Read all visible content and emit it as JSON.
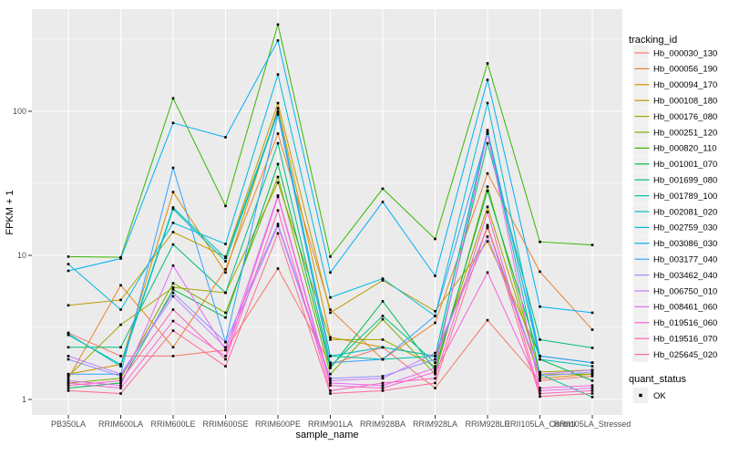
{
  "figure": {
    "xlabel": "sample_name",
    "ylabel": "FPKM + 1"
  },
  "legend": {
    "tracking_title": "tracking_id",
    "quant_title": "quant_status",
    "quant_ok_label": "OK",
    "quant_ok_color": "#000000"
  },
  "style": {
    "panel_bg": "#ebebeb",
    "grid_color": "#ffffff",
    "tick_color": "#333333",
    "key_bg": "#f0f0f0",
    "marker_color": "#000000"
  },
  "chart_data": {
    "type": "line",
    "title": "",
    "xlabel": "sample_name",
    "ylabel": "FPKM + 1",
    "y_scale": "log10",
    "grid": true,
    "legend_position": "right",
    "marker": "square",
    "ylim": [
      0.8,
      520
    ],
    "y_ticks": [
      1,
      10,
      100
    ],
    "y_minor": [
      3.162,
      31.62,
      316.2
    ],
    "categories": [
      "PB350LA",
      "RRIM600LA",
      "RRIM600LE",
      "RRIM600SE",
      "RRIM600PE",
      "RRIM901LA",
      "RRIM928BA",
      "RRIM928LA",
      "RRIM928LE",
      "RRII105LA_Control",
      "RRII105LA_Stressed"
    ],
    "series": [
      {
        "name": "Hb_000030_130",
        "color": "#F8766D",
        "values": [
          2.9,
          2.0,
          2.0,
          2.2,
          8.1,
          1.75,
          2.3,
          1.2,
          3.55,
          1.35,
          1.45
        ]
      },
      {
        "name": "Hb_000056_190",
        "color": "#EA8331",
        "values": [
          1.4,
          6.2,
          2.3,
          8.0,
          70,
          4.2,
          1.9,
          3.4,
          37,
          7.7,
          3.05
        ]
      },
      {
        "name": "Hb_000094_170",
        "color": "#D89000",
        "values": [
          1.5,
          1.75,
          27.5,
          7.6,
          105,
          2.7,
          2.3,
          2.0,
          15.5,
          1.4,
          1.5
        ]
      },
      {
        "name": "Hb_000108_180",
        "color": "#C09B00",
        "values": [
          4.5,
          4.9,
          14.5,
          9.8,
          114,
          4.0,
          6.7,
          4.1,
          12.5,
          2.0,
          1.8
        ]
      },
      {
        "name": "Hb_000176_080",
        "color": "#A3A500",
        "values": [
          1.45,
          3.3,
          6.0,
          5.5,
          32,
          2.6,
          2.6,
          1.7,
          21.7,
          1.55,
          1.6
        ]
      },
      {
        "name": "Hb_000251_120",
        "color": "#7CAE00",
        "values": [
          1.3,
          1.4,
          6.4,
          4.0,
          35,
          1.5,
          3.6,
          1.5,
          30,
          1.5,
          1.5
        ]
      },
      {
        "name": "Hb_000820_110",
        "color": "#39B600",
        "values": [
          9.8,
          9.7,
          123,
          22,
          400,
          9.8,
          29,
          13,
          215,
          12.4,
          11.8
        ]
      },
      {
        "name": "Hb_001001_070",
        "color": "#00BB4E",
        "values": [
          1.2,
          1.3,
          5.8,
          3.7,
          43,
          1.65,
          4.8,
          1.6,
          28,
          1.9,
          1.35
        ]
      },
      {
        "name": "Hb_001699_080",
        "color": "#00BF7D",
        "values": [
          2.3,
          2.3,
          11.9,
          5.5,
          60,
          1.7,
          3.8,
          1.8,
          60,
          2.6,
          2.28
        ]
      },
      {
        "name": "Hb_001789_100",
        "color": "#00C1A3",
        "values": [
          2.85,
          1.7,
          21.0,
          9.1,
          98,
          2.0,
          1.9,
          2.0,
          72,
          1.5,
          1.04
        ]
      },
      {
        "name": "Hb_002081_020",
        "color": "#00BFC4",
        "values": [
          2.8,
          1.75,
          21.5,
          9.6,
          100,
          2.0,
          2.3,
          2.0,
          74,
          1.9,
          1.7
        ]
      },
      {
        "name": "Hb_002759_030",
        "color": "#00BAE0",
        "values": [
          8.7,
          4.2,
          16.8,
          12,
          180,
          5.1,
          6.9,
          3.8,
          114,
          2.0,
          1.8
        ]
      },
      {
        "name": "Hb_003086_030",
        "color": "#00B0F6",
        "values": [
          7.8,
          9.5,
          83,
          66,
          310,
          7.6,
          23.5,
          7.2,
          165,
          4.4,
          4.0
        ]
      },
      {
        "name": "Hb_003177_040",
        "color": "#35A2FF",
        "values": [
          1.5,
          1.5,
          40.5,
          2.5,
          95,
          1.8,
          1.9,
          3.8,
          70,
          2.0,
          1.8
        ]
      },
      {
        "name": "Hb_003462_040",
        "color": "#9590FF",
        "values": [
          1.9,
          1.45,
          5.5,
          2.5,
          16.5,
          1.4,
          1.45,
          1.9,
          15.8,
          1.45,
          1.55
        ]
      },
      {
        "name": "Hb_006750_010",
        "color": "#C77CFF",
        "values": [
          2.0,
          1.5,
          5.2,
          2.3,
          16,
          1.35,
          1.4,
          2.1,
          13.5,
          1.5,
          1.6
        ]
      },
      {
        "name": "Hb_008461_060",
        "color": "#E76BF3",
        "values": [
          1.35,
          1.25,
          8.5,
          2.2,
          26,
          1.3,
          1.25,
          1.65,
          70,
          1.15,
          1.2
        ]
      },
      {
        "name": "Hb_019516_060",
        "color": "#FA62DB",
        "values": [
          1.3,
          1.2,
          3.5,
          2.0,
          25.5,
          1.25,
          1.2,
          1.55,
          7.6,
          1.2,
          1.25
        ]
      },
      {
        "name": "Hb_019516_070",
        "color": "#FF62BC",
        "values": [
          1.25,
          1.35,
          4.2,
          1.9,
          20.5,
          1.15,
          1.3,
          1.4,
          20,
          1.1,
          1.15
        ]
      },
      {
        "name": "Hb_025645_020",
        "color": "#FF6A98",
        "values": [
          1.15,
          1.1,
          3.0,
          1.7,
          14.2,
          1.1,
          1.15,
          1.3,
          16.2,
          1.05,
          1.1
        ]
      }
    ]
  }
}
